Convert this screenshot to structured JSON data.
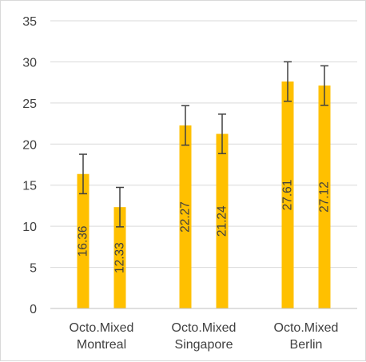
{
  "chart_data": {
    "type": "bar",
    "categories": [
      [
        "Octo.Mixed",
        "Montreal"
      ],
      [
        "Octo.Mixed",
        "Singapore"
      ],
      [
        "Octo.Mixed",
        "Berlin"
      ]
    ],
    "series": [
      {
        "values": [
          16.36,
          22.27,
          27.61
        ],
        "errors": [
          2.4,
          2.4,
          2.4
        ]
      },
      {
        "values": [
          12.33,
          21.24,
          27.12
        ],
        "errors": [
          2.4,
          2.4,
          2.4
        ]
      }
    ],
    "data_labels": [
      [
        "16.36",
        "22.27",
        "27.61"
      ],
      [
        "12.33",
        "21.24",
        "27.12"
      ]
    ],
    "yticks": [
      "0",
      "5",
      "10",
      "15",
      "20",
      "25",
      "30",
      "35"
    ],
    "ylim": [
      0,
      35
    ],
    "grid": true,
    "legend": "none",
    "bar_color": "#FFC000",
    "error_bar_color": "#404040",
    "grid_color": "#d9d9d9",
    "axis_color": "#bfbfbf"
  }
}
